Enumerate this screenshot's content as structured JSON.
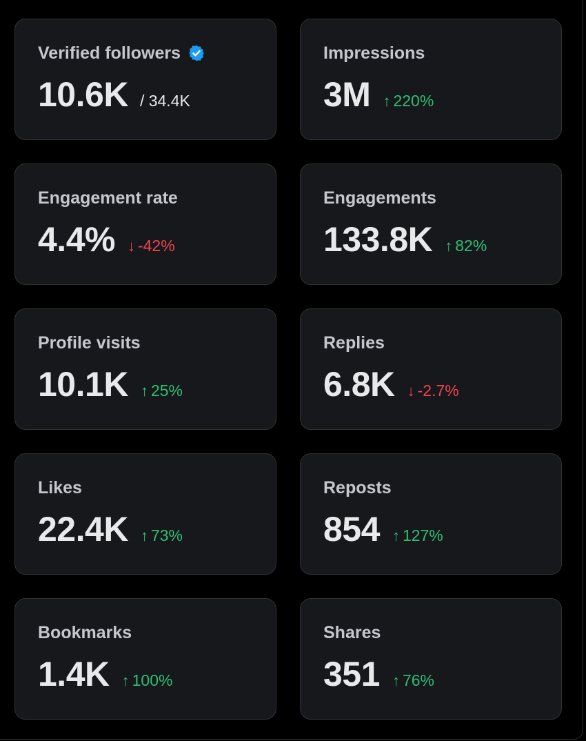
{
  "colors": {
    "background": "#000000",
    "card": "#16181c",
    "border": "#2f3336",
    "label": "#c4c8cc",
    "value": "#e7e9ea",
    "positive": "#2fbf71",
    "negative": "#f4434f",
    "verified": "#1d9bf0"
  },
  "cards": [
    {
      "label": "Verified followers",
      "value": "10.6K",
      "suffix": "/ 34.4K",
      "icon": "verified-badge-icon"
    },
    {
      "label": "Impressions",
      "value": "3M",
      "delta": "220%",
      "direction": "up"
    },
    {
      "label": "Engagement rate",
      "value": "4.4%",
      "delta": "-42%",
      "direction": "down"
    },
    {
      "label": "Engagements",
      "value": "133.8K",
      "delta": "82%",
      "direction": "up"
    },
    {
      "label": "Profile visits",
      "value": "10.1K",
      "delta": "25%",
      "direction": "up"
    },
    {
      "label": "Replies",
      "value": "6.8K",
      "delta": "-2.7%",
      "direction": "down"
    },
    {
      "label": "Likes",
      "value": "22.4K",
      "delta": "73%",
      "direction": "up"
    },
    {
      "label": "Reposts",
      "value": "854",
      "delta": "127%",
      "direction": "up"
    },
    {
      "label": "Bookmarks",
      "value": "1.4K",
      "delta": "100%",
      "direction": "up"
    },
    {
      "label": "Shares",
      "value": "351",
      "delta": "76%",
      "direction": "up"
    }
  ]
}
